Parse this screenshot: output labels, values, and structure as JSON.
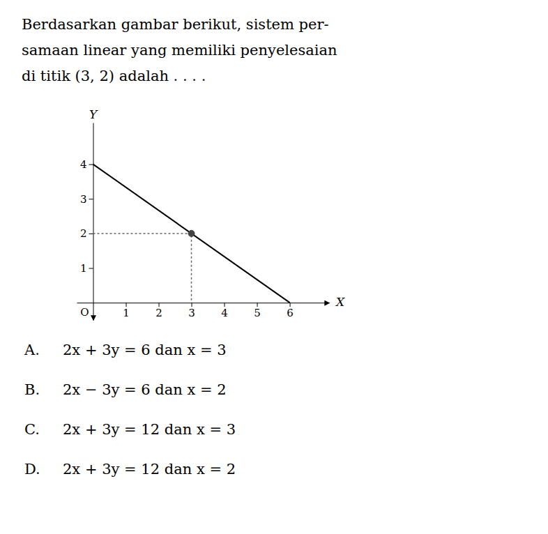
{
  "chart_data": {
    "type": "line",
    "title": [
      "Berdasarkan gambar berikut, sistem per-",
      "samaan linear yang memiliki penyelesaian",
      "di titik (3, 2) adalah . . . ."
    ],
    "xlabel": "X",
    "ylabel": "Y",
    "xlim": [
      -0.5,
      7.2
    ],
    "ylim": [
      -0.5,
      5.2
    ],
    "xticks": [
      1,
      2,
      3,
      4,
      5,
      6
    ],
    "yticks": [
      1,
      2,
      3,
      4
    ],
    "grid": false,
    "series": [
      {
        "type": "line",
        "x": [
          0,
          6
        ],
        "values": [
          4,
          0
        ],
        "color": "#000000",
        "line_style": "solid"
      },
      {
        "type": "line",
        "x": [
          0,
          3,
          3
        ],
        "values": [
          2,
          2,
          0
        ],
        "color": "#666666",
        "line_style": "dotted"
      },
      {
        "type": "scatter",
        "x": [
          3
        ],
        "values": [
          2
        ],
        "color": "#444444",
        "marker": "circle"
      }
    ],
    "annotations": [
      "O"
    ],
    "choices": [
      {
        "label": "A.",
        "text": "2x + 3y = 6 dan x = 3"
      },
      {
        "label": "B.",
        "text": "2x − 3y = 6 dan x = 2"
      },
      {
        "label": "C.",
        "text": "2x + 3y = 12 dan x = 3"
      },
      {
        "label": "D.",
        "text": "2x + 3y = 12 dan x = 2"
      }
    ]
  }
}
